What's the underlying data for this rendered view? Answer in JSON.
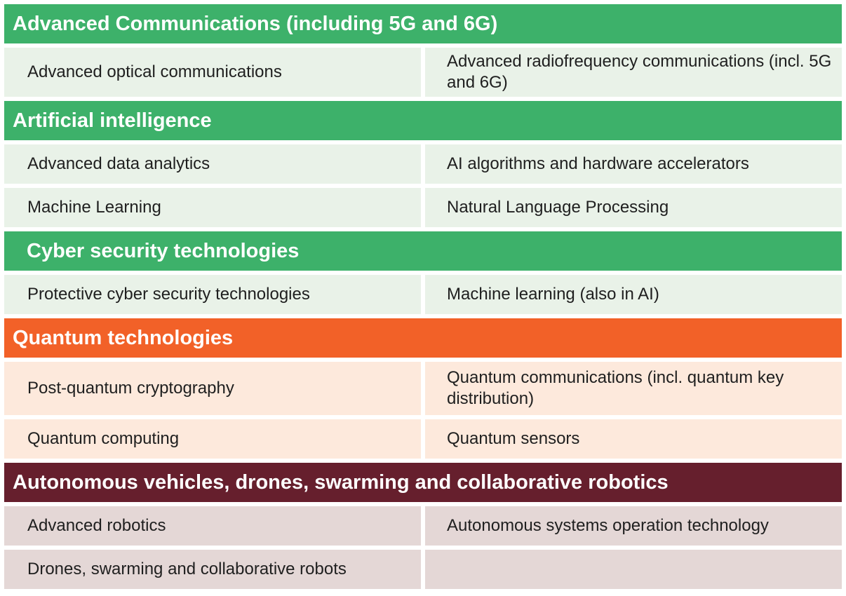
{
  "colors": {
    "green_header": "#3db16a",
    "green_cell": "#e9f2e8",
    "orange_header": "#f26128",
    "orange_cell": "#fde9dc",
    "maroon_header": "#661f2d",
    "maroon_cell": "#e4d7d6"
  },
  "sections": [
    {
      "title": "Advanced Communications (including 5G and 6G)",
      "rows": [
        {
          "left": "Advanced optical communications",
          "right": "Advanced radiofrequency communications (incl. 5G and 6G)"
        }
      ]
    },
    {
      "title": "Artificial intelligence",
      "rows": [
        {
          "left": "Advanced data analytics",
          "right": "AI algorithms and hardware accelerators"
        },
        {
          "left": "Machine Learning",
          "right": "Natural Language Processing"
        }
      ]
    },
    {
      "title": "Cyber security technologies",
      "rows": [
        {
          "left": "Protective cyber security technologies",
          "right": "Machine learning (also in AI)"
        }
      ]
    },
    {
      "title": "Quantum technologies",
      "rows": [
        {
          "left": "Post-quantum cryptography",
          "right": "Quantum communications (incl. quantum key distribution)"
        },
        {
          "left": "Quantum computing",
          "right": "Quantum sensors"
        }
      ]
    },
    {
      "title": "Autonomous vehicles, drones, swarming and collaborative robotics",
      "rows": [
        {
          "left": "Advanced robotics",
          "right": "Autonomous systems operation technology"
        },
        {
          "left": "Drones, swarming and collaborative robots",
          "right": ""
        }
      ]
    }
  ]
}
